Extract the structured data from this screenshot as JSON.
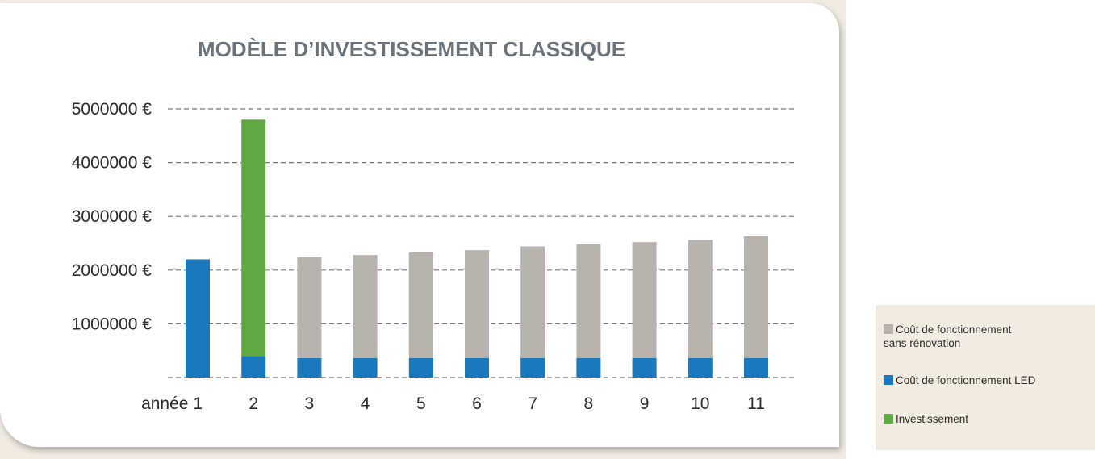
{
  "chart_data": {
    "type": "bar",
    "stacked": true,
    "title": "MODÈLE D’INVESTISSEMENT CLASSIQUE",
    "xlabel": "",
    "ylabel": "",
    "x_prefix": "année",
    "categories": [
      "1",
      "2",
      "3",
      "4",
      "5",
      "6",
      "7",
      "8",
      "9",
      "10",
      "11"
    ],
    "y_ticks": [
      {
        "value": 1000000,
        "label": "1000000 €"
      },
      {
        "value": 2000000,
        "label": "2000000 €"
      },
      {
        "value": 3000000,
        "label": "3000000 €"
      },
      {
        "value": 4000000,
        "label": "4000000 €"
      },
      {
        "value": 5000000,
        "label": "5000000 €"
      }
    ],
    "ylim": [
      0,
      5000000
    ],
    "grid": "dashed-horizontal",
    "legend_position": "bottom-right-outside",
    "series": [
      {
        "name": "Coût de fonctionnement LED",
        "color": "#1a78bc",
        "values": [
          2200000,
          400000,
          360000,
          360000,
          360000,
          360000,
          360000,
          360000,
          360000,
          360000,
          360000
        ]
      },
      {
        "name": "Investissement",
        "color": "#61a844",
        "values": [
          0,
          4400000,
          0,
          0,
          0,
          0,
          0,
          0,
          0,
          0,
          0
        ]
      },
      {
        "name": "Coût de fonctionnement sans rénovation",
        "color": "#b8b2ac",
        "values": [
          0,
          0,
          1880000,
          1920000,
          1970000,
          2010000,
          2080000,
          2120000,
          2160000,
          2200000,
          2270000
        ]
      }
    ]
  },
  "legend": {
    "items": [
      {
        "line1": "Coût de fonctionnement",
        "line2": "sans rénovation",
        "color": "#b8b2ac"
      },
      {
        "line1": "Coût de fonctionnement LED",
        "line2": "",
        "color": "#1a78bc"
      },
      {
        "line1": "Investissement",
        "line2": "",
        "color": "#61a844"
      }
    ]
  }
}
